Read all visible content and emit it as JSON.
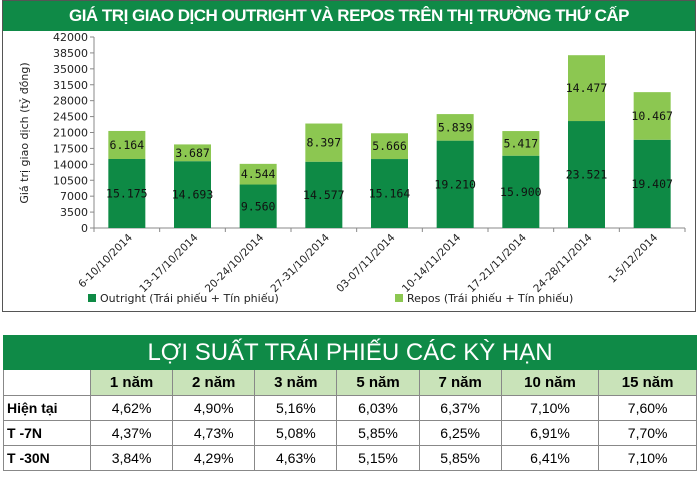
{
  "chart_data": {
    "type": "bar",
    "stacked": true,
    "title": "GIÁ TRỊ GIAO DỊCH OUTRIGHT VÀ REPOS TRÊN THỊ TRƯỜNG THỨ CẤP",
    "ylabel": "Giá trị giao dịch (tỷ đồng)",
    "ylim": [
      0,
      42000
    ],
    "yticks": [
      0,
      3500,
      7000,
      10500,
      14000,
      17500,
      21000,
      24500,
      28000,
      31500,
      35000,
      38500,
      42000
    ],
    "categories": [
      "6-10/10/2014",
      "13-17/10/2014",
      "20-24/10/2014",
      "27-31/10/2014",
      "03-07/11/2014",
      "10-14/11/2014",
      "17-21/11/2014",
      "24-28/11/2014",
      "1-5/12/2014"
    ],
    "series": [
      {
        "name": "Outright (Trái phiếu + Tín phiếu)",
        "color": "#0e8a45",
        "values": [
          15175,
          14693,
          9560,
          14577,
          15164,
          19210,
          15900,
          23521,
          19407
        ],
        "labels": [
          "15.175",
          "14.693",
          "9.560",
          "14.577",
          "15.164",
          "19.210",
          "15.900",
          "23.521",
          "19.407"
        ]
      },
      {
        "name": "Repos (Trái phiếu + Tín phiếu)",
        "color": "#8cc751",
        "values": [
          6164,
          3687,
          4544,
          8397,
          5666,
          5839,
          5417,
          14477,
          10467
        ],
        "labels": [
          "6.164",
          "3.687",
          "4.544",
          "8.397",
          "5.666",
          "5.839",
          "5.417",
          "14.477",
          "10.467"
        ]
      }
    ],
    "legend": "bottom"
  },
  "table": {
    "title": "LỢI SUẤT TRÁI PHIẾU CÁC KỲ HẠN",
    "headers": [
      "",
      "1 năm",
      "2 năm",
      "3 năm",
      "5 năm",
      "7 năm",
      "10 năm",
      "15 năm"
    ],
    "rows": [
      [
        "Hiện tại",
        "4,62%",
        "4,90%",
        "5,16%",
        "6,03%",
        "6,37%",
        "7,10%",
        "7,60%"
      ],
      [
        "T -7N",
        "4,37%",
        "4,73%",
        "5,08%",
        "5,85%",
        "6,25%",
        "6,91%",
        "7,70%"
      ],
      [
        "T -30N",
        "3,84%",
        "4,29%",
        "4,63%",
        "5,15%",
        "5,85%",
        "6,41%",
        "7,10%"
      ]
    ]
  }
}
